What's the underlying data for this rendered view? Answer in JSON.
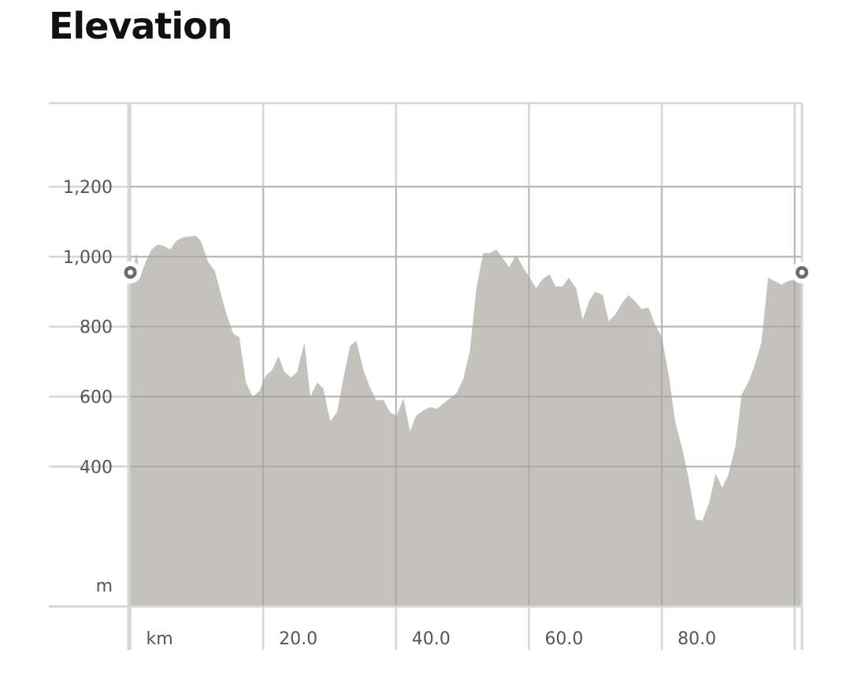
{
  "header": {
    "title": "Elevation"
  },
  "colors": {
    "area_fill": "#c3c2bd",
    "grid": "#d6d6d6",
    "marker_ring": "#6b6b6b",
    "marker_center": "#ffffff",
    "text": "#555555"
  },
  "chart_data": {
    "type": "area",
    "title": "Elevation",
    "xlabel": "km",
    "ylabel": "m",
    "xlim": [
      -0.3,
      101.1
    ],
    "ylim": [
      0,
      1200
    ],
    "x_ticks": [
      "20.0",
      "40.0",
      "60.0",
      "80.0"
    ],
    "x_tick_values": [
      20,
      40,
      60,
      80
    ],
    "x_grid_values": [
      0,
      20,
      40,
      60,
      80,
      100
    ],
    "y_ticks": [
      "1,200",
      "1,000",
      "800",
      "600",
      "400"
    ],
    "y_tick_values": [
      1200,
      1000,
      800,
      600,
      400
    ],
    "y_grid_values": [
      0,
      400,
      600,
      800,
      1000,
      1200,
      1400
    ],
    "markers": [
      {
        "label": "start",
        "x": 0,
        "y": 955
      },
      {
        "label": "end",
        "x": 101.1,
        "y": 955
      }
    ],
    "series": [
      {
        "points": [
          [
            0,
            930
          ],
          [
            0.5,
            970
          ],
          [
            0.9,
            1010
          ],
          [
            1.5,
            945
          ],
          [
            2.3,
            985
          ],
          [
            3.2,
            1020
          ],
          [
            4.1,
            1035
          ],
          [
            5.1,
            1030
          ],
          [
            6.0,
            1020
          ],
          [
            6.9,
            1045
          ],
          [
            7.9,
            1055
          ],
          [
            9.8,
            1060
          ],
          [
            10.6,
            1045
          ],
          [
            11.7,
            985
          ],
          [
            12.7,
            960
          ],
          [
            14.4,
            840
          ],
          [
            15.5,
            780
          ],
          [
            16.4,
            770
          ],
          [
            17.4,
            640
          ],
          [
            18.4,
            600
          ],
          [
            19.4,
            615
          ],
          [
            20.4,
            660
          ],
          [
            21.3,
            675
          ],
          [
            22.3,
            715
          ],
          [
            23.2,
            670
          ],
          [
            24.2,
            655
          ],
          [
            25.1,
            670
          ],
          [
            26.2,
            755
          ],
          [
            27.1,
            600
          ],
          [
            28.1,
            640
          ],
          [
            29.0,
            625
          ],
          [
            30.1,
            530
          ],
          [
            31.1,
            555
          ],
          [
            32.2,
            665
          ],
          [
            33.1,
            745
          ],
          [
            34.0,
            760
          ],
          [
            35.1,
            675
          ],
          [
            36.1,
            625
          ],
          [
            37.0,
            590
          ],
          [
            38.1,
            590
          ],
          [
            39.1,
            555
          ],
          [
            40.1,
            545
          ],
          [
            41.1,
            595
          ],
          [
            42.1,
            500
          ],
          [
            43.0,
            545
          ],
          [
            44.1,
            560
          ],
          [
            45.1,
            570
          ],
          [
            46.1,
            565
          ],
          [
            47.1,
            580
          ],
          [
            48.1,
            595
          ],
          [
            49.1,
            610
          ],
          [
            50.1,
            650
          ],
          [
            51.1,
            730
          ],
          [
            52.1,
            910
          ],
          [
            53.1,
            1010
          ],
          [
            54.1,
            1010
          ],
          [
            55.1,
            1020
          ],
          [
            56.1,
            995
          ],
          [
            57.0,
            970
          ],
          [
            58.1,
            1005
          ],
          [
            59.1,
            970
          ],
          [
            60.1,
            940
          ],
          [
            61.1,
            910
          ],
          [
            62.0,
            935
          ],
          [
            63.1,
            950
          ],
          [
            64.0,
            915
          ],
          [
            65.1,
            915
          ],
          [
            66.0,
            940
          ],
          [
            67.1,
            910
          ],
          [
            68.1,
            820
          ],
          [
            69.1,
            875
          ],
          [
            70.0,
            900
          ],
          [
            71.1,
            890
          ],
          [
            72.0,
            815
          ],
          [
            73.0,
            835
          ],
          [
            74.1,
            870
          ],
          [
            75.0,
            890
          ],
          [
            76.1,
            870
          ],
          [
            77.0,
            850
          ],
          [
            78.0,
            855
          ],
          [
            79.0,
            805
          ],
          [
            80.0,
            770
          ],
          [
            81.1,
            655
          ],
          [
            82.0,
            530
          ],
          [
            83.1,
            450
          ],
          [
            84.1,
            360
          ],
          [
            85.1,
            250
          ],
          [
            86.1,
            245
          ],
          [
            87.1,
            295
          ],
          [
            88.1,
            380
          ],
          [
            89.1,
            340
          ],
          [
            90.0,
            375
          ],
          [
            91.1,
            460
          ],
          [
            92.0,
            605
          ],
          [
            93.0,
            640
          ],
          [
            94.0,
            690
          ],
          [
            95.0,
            755
          ],
          [
            96.0,
            940
          ],
          [
            97.0,
            930
          ],
          [
            98.0,
            920
          ],
          [
            99.0,
            930
          ],
          [
            100.0,
            935
          ],
          [
            101.1,
            935
          ]
        ]
      }
    ]
  }
}
